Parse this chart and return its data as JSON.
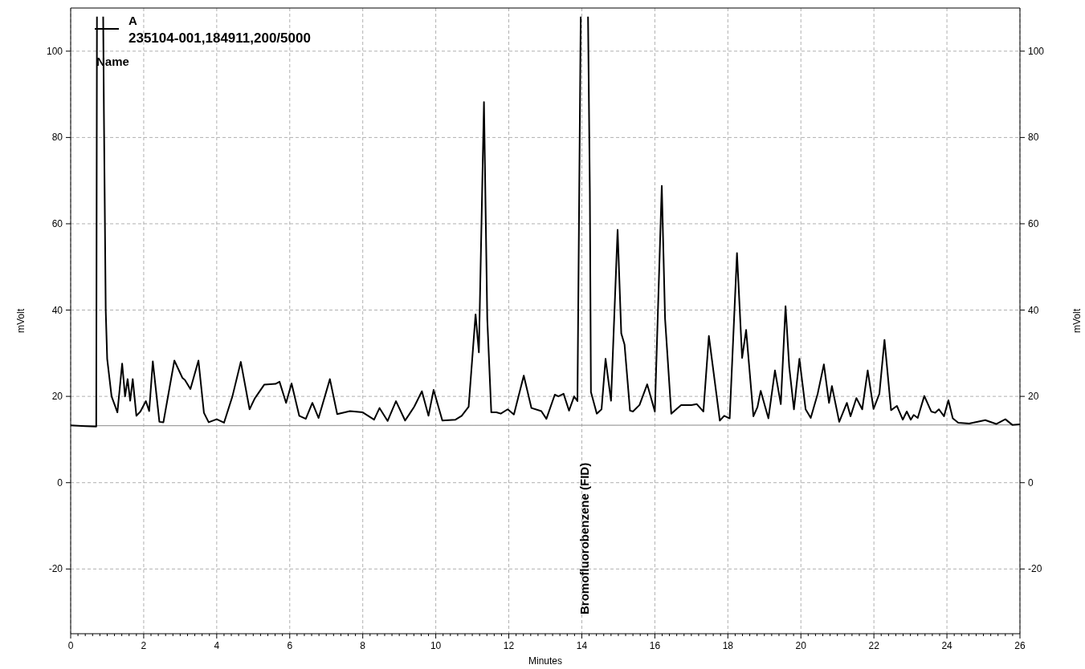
{
  "chart_data": {
    "type": "line",
    "xlabel": "Minutes",
    "ylabel": "mVolt",
    "y2label": "mVolt",
    "xlim": [
      0,
      26
    ],
    "xticks": [
      0,
      2,
      4,
      6,
      8,
      10,
      12,
      14,
      16,
      18,
      20,
      22,
      24,
      26
    ],
    "ylim": [
      -35,
      110
    ],
    "yticks": [
      -20,
      0,
      20,
      40,
      60,
      80,
      100
    ],
    "y2lim": [
      -35,
      110
    ],
    "y2ticks": [
      -20,
      0,
      20,
      40,
      60,
      80,
      100
    ],
    "grid": true,
    "legend": "top left",
    "marker": "none",
    "line_style": "solid",
    "annotations": [
      "235104-001,184911,200/5000",
      "Name",
      "Bromofluorobenzene (FID)"
    ],
    "series": [
      {
        "color": "#a0a0a0",
        "x": [
          0,
          4,
          14,
          26
        ],
        "values": [
          13.2,
          13.2,
          13.3,
          13.4
        ]
      },
      {
        "name": "A",
        "color": "#000000",
        "x": [
          0,
          0.4,
          0.7,
          0.72,
          0.8,
          0.89,
          0.91,
          0.93,
          0.96,
          1.0,
          1.12,
          1.28,
          1.41,
          1.49,
          1.56,
          1.63,
          1.7,
          1.8,
          1.91,
          2.06,
          2.15,
          2.25,
          2.43,
          2.54,
          2.84,
          3.06,
          3.13,
          3.28,
          3.5,
          3.65,
          3.78,
          4.0,
          4.2,
          4.43,
          4.66,
          4.9,
          5.04,
          5.3,
          5.61,
          5.72,
          5.9,
          6.05,
          6.26,
          6.44,
          6.62,
          6.79,
          7.1,
          7.3,
          7.65,
          8.0,
          8.31,
          8.46,
          8.68,
          8.91,
          9.16,
          9.41,
          9.62,
          9.8,
          9.94,
          10.18,
          10.54,
          10.71,
          10.9,
          11.09,
          11.18,
          11.32,
          11.41,
          11.52,
          11.66,
          11.78,
          11.97,
          12.14,
          12.41,
          12.62,
          12.89,
          13.03,
          13.26,
          13.36,
          13.5,
          13.65,
          13.79,
          13.88,
          13.97,
          14.05,
          14.17,
          14.22,
          14.25,
          14.41,
          14.54,
          14.65,
          14.8,
          14.98,
          15.08,
          15.17,
          15.32,
          15.4,
          15.58,
          15.79,
          16.0,
          16.19,
          16.28,
          16.45,
          16.72,
          17.0,
          17.15,
          17.33,
          17.48,
          17.78,
          17.9,
          18.05,
          18.25,
          18.39,
          18.5,
          18.7,
          18.81,
          18.9,
          19.11,
          19.29,
          19.45,
          19.58,
          19.68,
          19.81,
          19.96,
          20.13,
          20.27,
          20.46,
          20.63,
          20.77,
          20.85,
          21.05,
          21.26,
          21.36,
          21.52,
          21.68,
          21.83,
          21.99,
          22.15,
          22.29,
          22.47,
          22.63,
          22.79,
          22.9,
          23.01,
          23.09,
          23.2,
          23.38,
          23.57,
          23.68,
          23.78,
          23.92,
          24.04,
          24.16,
          24.31,
          24.61,
          25.05,
          25.35,
          25.6,
          25.79,
          26.0
        ],
        "values": [
          13.3,
          13.1,
          13.0,
          108,
          null,
          108,
          86,
          67.5,
          40,
          28.7,
          20,
          16.3,
          27.6,
          20,
          24,
          19,
          24,
          15.5,
          16.5,
          18.9,
          16.6,
          28.1,
          14.1,
          14,
          28.3,
          24.3,
          23.8,
          21.7,
          28.3,
          16.2,
          14,
          14.7,
          13.9,
          20,
          28,
          17,
          19.5,
          22.7,
          22.9,
          23.4,
          18.5,
          23,
          15.5,
          14.8,
          18.5,
          15,
          24,
          15.9,
          16.6,
          16.3,
          14.6,
          17.3,
          14.3,
          18.9,
          14.4,
          17.6,
          21.2,
          15.5,
          21.5,
          14.4,
          14.6,
          15.5,
          17.6,
          39,
          30.2,
          88.2,
          38,
          16.3,
          16.3,
          16,
          17,
          15.8,
          24.8,
          17.3,
          16.6,
          14.8,
          20.4,
          20,
          20.6,
          16.7,
          20,
          18.9,
          108,
          null,
          108,
          67.5,
          21,
          16,
          17,
          28.7,
          19,
          58.6,
          34.6,
          32,
          16.7,
          16.5,
          18,
          22.8,
          16.5,
          68.8,
          38,
          16,
          18,
          18,
          18.2,
          16.5,
          34,
          14.4,
          15.5,
          14.9,
          53.2,
          28.9,
          35.4,
          15.4,
          17.5,
          21.3,
          14.9,
          26,
          18.2,
          40.9,
          26.9,
          17,
          28.7,
          17,
          15,
          20.6,
          27.4,
          18.5,
          22.4,
          14.1,
          18.5,
          15.4,
          19.6,
          17,
          26,
          17.1,
          20.6,
          33.1,
          16.8,
          17.8,
          14.6,
          16.5,
          14.6,
          15.7,
          15,
          20.1,
          16.5,
          16.2,
          17,
          15.4,
          19.1,
          14.9,
          13.9,
          13.7,
          14.5,
          13.6,
          14.7,
          13.4,
          13.5
        ]
      }
    ]
  }
}
